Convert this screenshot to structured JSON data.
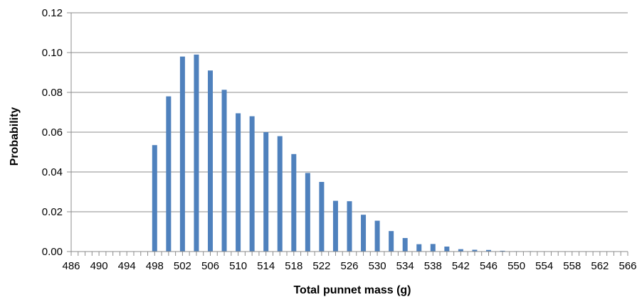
{
  "chart_data": {
    "type": "bar",
    "xlabel": "Total punnet mass (g)",
    "ylabel": "Probability",
    "ylim": [
      0,
      0.12
    ],
    "yticks": [
      "0.00",
      "0.02",
      "0.04",
      "0.06",
      "0.08",
      "0.10",
      "0.12"
    ],
    "grid": true,
    "bar_color": "#4f81bd",
    "x_tick_labels": [
      "486",
      "490",
      "494",
      "498",
      "502",
      "506",
      "510",
      "514",
      "518",
      "522",
      "526",
      "530",
      "534",
      "538",
      "542",
      "546",
      "550",
      "554",
      "558",
      "562",
      "566"
    ],
    "x": [
      486,
      487,
      488,
      489,
      490,
      491,
      492,
      493,
      494,
      495,
      496,
      497,
      498,
      499,
      500,
      501,
      502,
      503,
      504,
      505,
      506,
      507,
      508,
      509,
      510,
      511,
      512,
      513,
      514,
      515,
      516,
      517,
      518,
      519,
      520,
      521,
      522,
      523,
      524,
      525,
      526,
      527,
      528,
      529,
      530,
      531,
      532,
      533,
      534,
      535,
      536,
      537,
      538,
      539,
      540,
      541,
      542,
      543,
      544,
      545,
      546,
      547,
      548,
      549,
      550,
      551,
      552,
      553,
      554,
      555,
      556,
      557,
      558,
      559,
      560,
      561,
      562,
      563,
      564,
      565,
      566
    ],
    "values": [
      0,
      0,
      0,
      0,
      0,
      0,
      0,
      0,
      0,
      0,
      0,
      0,
      0.0535,
      0,
      0.078,
      0,
      0.098,
      0,
      0.099,
      0,
      0.091,
      0,
      0.0813,
      0,
      0.0695,
      0,
      0.068,
      0,
      0.06,
      0,
      0.058,
      0,
      0.049,
      0,
      0.0395,
      0,
      0.035,
      0,
      0.0255,
      0,
      0.0253,
      0,
      0.0185,
      0,
      0.0155,
      0,
      0.0103,
      0,
      0.0068,
      0,
      0.0037,
      0,
      0.0038,
      0,
      0.0025,
      0,
      0.0012,
      0,
      0.0009,
      0,
      0.0008,
      0,
      0.0004,
      0,
      0.0002,
      0,
      0.0002,
      0,
      0,
      0,
      0,
      0,
      0,
      0,
      0,
      0,
      0,
      0,
      0,
      0,
      0
    ]
  }
}
